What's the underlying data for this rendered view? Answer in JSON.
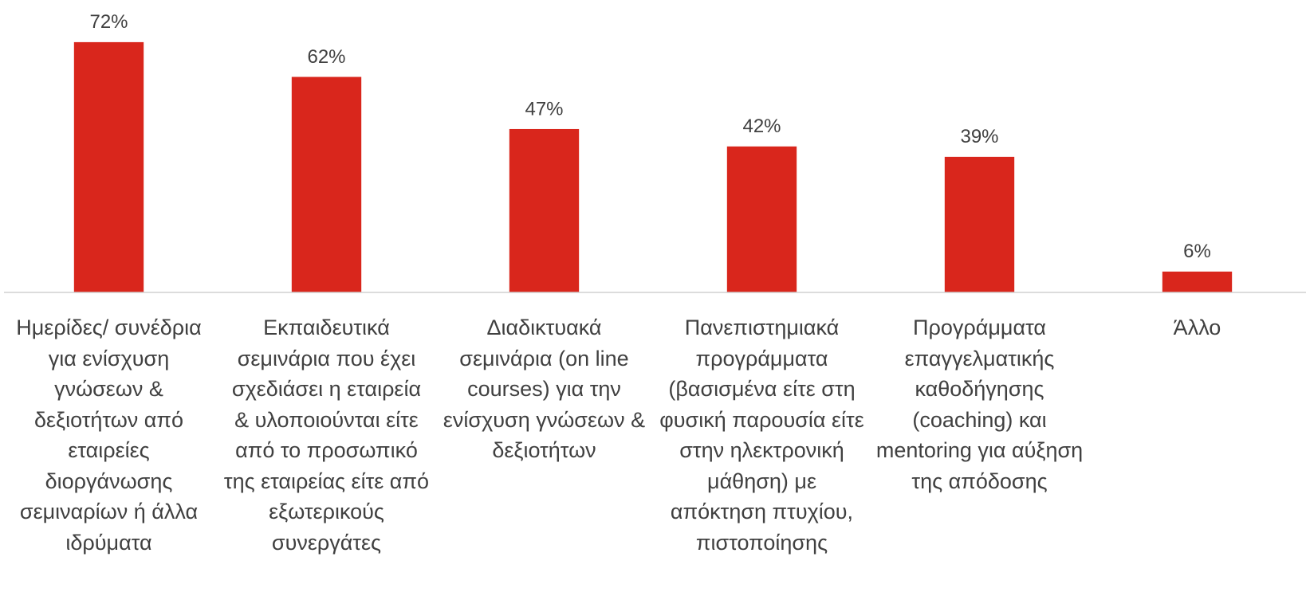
{
  "chart_data": {
    "type": "bar",
    "categories": [
      "Ημερίδες/ συνέδρια για ενίσχυση γνώσεων & δεξιοτήτων από εταιρείες διοργάνωσης σεμιναρίων ή άλλα ιδρύματα",
      "Εκπαιδευτικά σεμινάρια που έχει σχεδιάσει η εταιρεία & υλοποιούνται είτε από το προσωπικό της εταιρείας είτε από εξωτερικούς συνεργάτες",
      "Διαδικτυακά σεμινάρια (on line courses) για την ενίσχυση γνώσεων & δεξιοτήτων",
      "Πανεπιστημιακά προγράμματα (βασισμένα είτε στη φυσική παρουσία είτε στην ηλεκτρονική μάθηση) με απόκτηση πτυχίου, πιστοποίησης",
      "Προγράμματα επαγγελματικής καθοδήγησης (coaching) και mentoring για αύξηση της απόδοσης",
      "Άλλο"
    ],
    "values": [
      72,
      62,
      47,
      42,
      39,
      6
    ],
    "value_labels": [
      "72%",
      "62%",
      "47%",
      "42%",
      "39%",
      "6%"
    ],
    "color": "#d9261c",
    "ylim": [
      0,
      80
    ]
  }
}
